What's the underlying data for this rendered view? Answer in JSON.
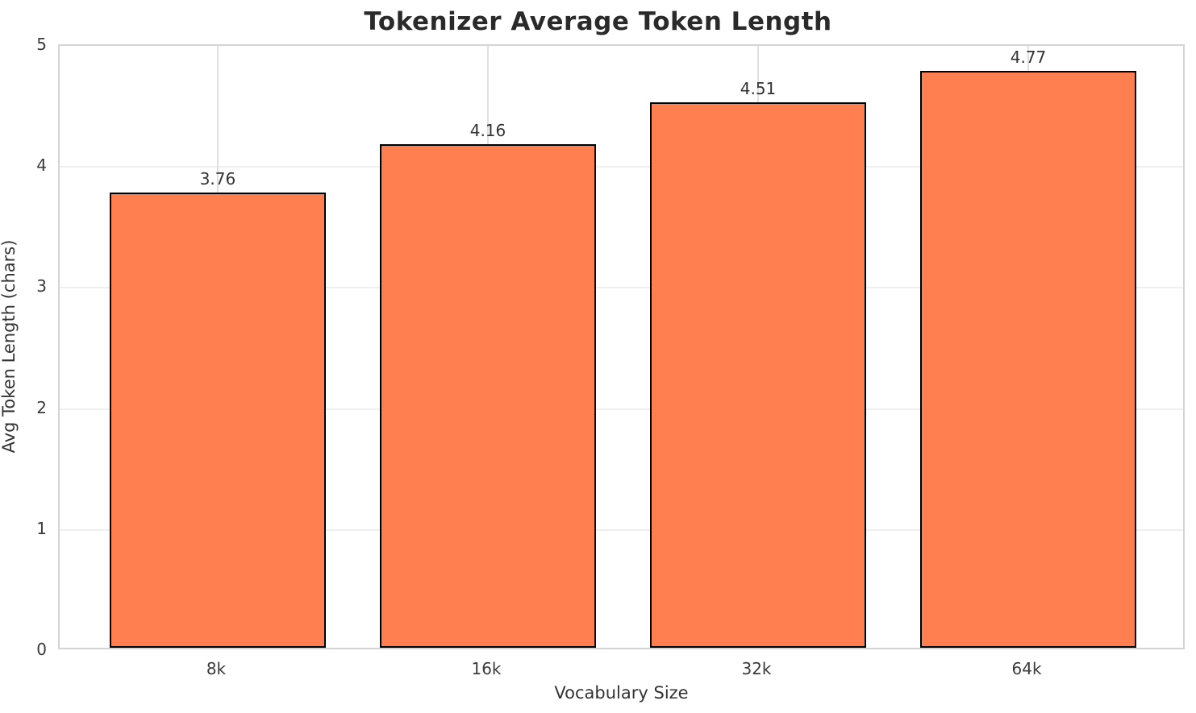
{
  "chart_data": {
    "type": "bar",
    "title": "Tokenizer Average Token Length",
    "xlabel": "Vocabulary Size",
    "ylabel": "Avg Token Length (chars)",
    "categories": [
      "8k",
      "16k",
      "32k",
      "64k"
    ],
    "values": [
      3.76,
      4.16,
      4.51,
      4.77
    ],
    "bar_labels": [
      "3.76",
      "4.16",
      "4.51",
      "4.77"
    ],
    "ylim": [
      0,
      5
    ],
    "yticks": [
      "0",
      "1",
      "2",
      "3",
      "4",
      "5"
    ],
    "grid": true,
    "legend": false,
    "colors": {
      "bar_fill": "#ff7f50",
      "bar_edge": "#000000",
      "grid_horizontal": "#efefef",
      "grid_vertical": "#e0e0e0",
      "spine": "#d4d4d4",
      "text": "#333333",
      "title_text": "#2a2a2a",
      "background": "#ffffff"
    }
  }
}
